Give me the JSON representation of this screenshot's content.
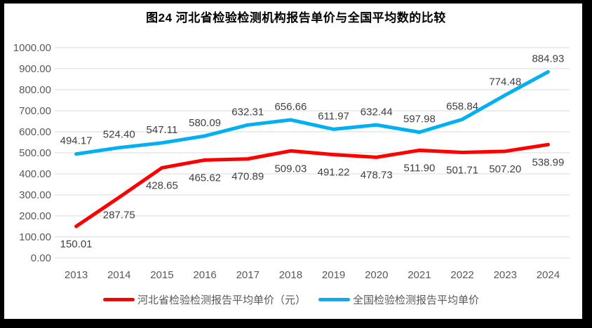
{
  "title": "图24  河北省检验检测机构报告单价与全国平均数的比较",
  "chart_data": {
    "type": "line",
    "categories": [
      "2013",
      "2014",
      "2015",
      "2016",
      "2017",
      "2018",
      "2019",
      "2020",
      "2021",
      "2022",
      "2023",
      "2024"
    ],
    "series": [
      {
        "name": "河北省检验检测报告平均单价（元）",
        "color": "#FF0000",
        "label_position": "below",
        "values": [
          150.01,
          287.75,
          428.65,
          465.62,
          470.89,
          509.03,
          491.22,
          478.73,
          511.9,
          501.71,
          507.2,
          538.99
        ]
      },
      {
        "name": "全国检验检测报告平均单价",
        "color": "#00B0F0",
        "label_position": "above",
        "values": [
          494.17,
          524.4,
          547.11,
          580.09,
          632.31,
          656.66,
          611.97,
          632.44,
          597.98,
          658.84,
          774.48,
          884.93
        ]
      }
    ],
    "ylim": [
      0,
      1000
    ],
    "ytick_step": 100,
    "value_decimals": 2,
    "grid": true,
    "legend_position": "bottom",
    "colors": {
      "gridline": "#D9D9D9",
      "axis_label": "#595959",
      "data_label": "#404040",
      "frame": "#000000",
      "background": "#FFFFFF"
    }
  }
}
